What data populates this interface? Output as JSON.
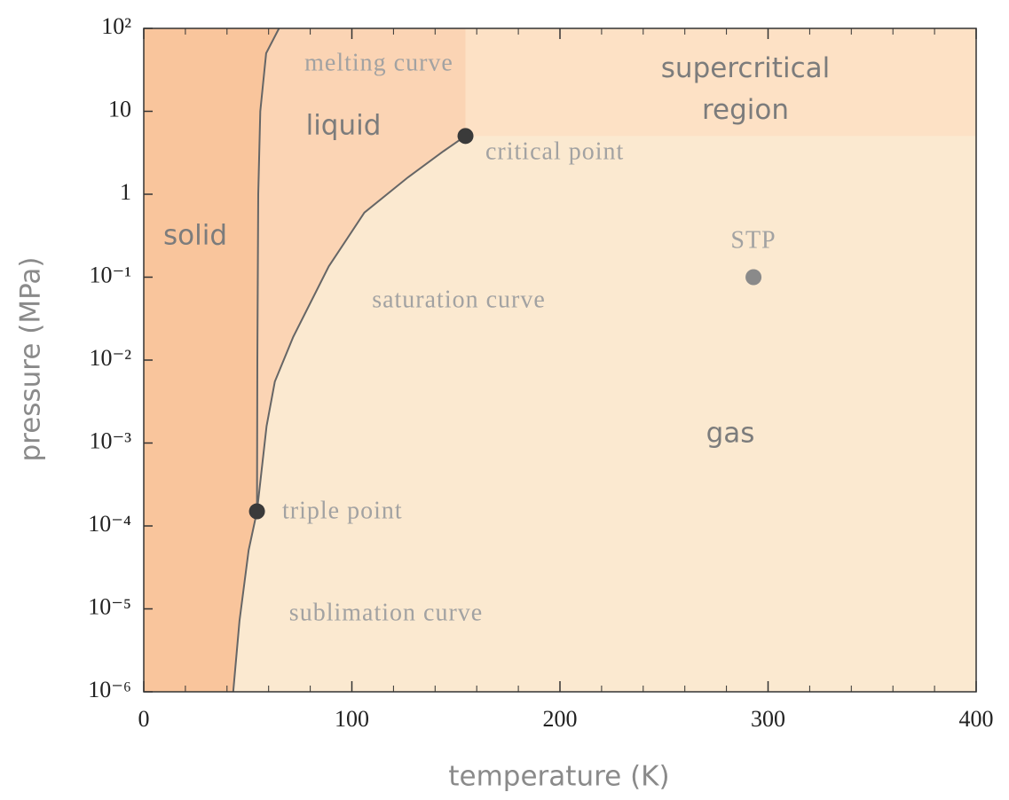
{
  "chart_data": {
    "type": "line",
    "xlabel": "temperature  (K)",
    "ylabel": "pressure  (MPa)",
    "xlim": [
      0,
      400
    ],
    "xticks": [
      0,
      100,
      200,
      300,
      400
    ],
    "xminorticks": [
      20,
      40,
      60,
      80,
      120,
      140,
      160,
      180,
      220,
      240,
      260,
      280,
      320,
      340,
      360,
      380
    ],
    "ylim": [
      1e-06,
      100
    ],
    "yscale": "log",
    "yticks": [
      {
        "value": 1e-06,
        "label": "10⁻⁶"
      },
      {
        "value": 1e-05,
        "label": "10⁻⁵"
      },
      {
        "value": 0.0001,
        "label": "10⁻⁴"
      },
      {
        "value": 0.001,
        "label": "10⁻³"
      },
      {
        "value": 0.01,
        "label": "10⁻²"
      },
      {
        "value": 0.1,
        "label": "10⁻¹"
      },
      1,
      10,
      {
        "value": 100,
        "label": "10²"
      }
    ],
    "line_color": "#666666",
    "series": [
      {
        "name": "melting curve",
        "x": [
          54.4,
          54.6,
          55,
          56,
          58.8,
          65
        ],
        "values": [
          0.00015,
          0.01,
          1,
          10,
          50,
          100
        ]
      },
      {
        "name": "saturation curve",
        "x": [
          54.4,
          59,
          63,
          71.8,
          88.9,
          106,
          127,
          144,
          154.6
        ],
        "values": [
          0.00015,
          0.0016,
          0.0055,
          0.019,
          0.135,
          0.6,
          1.6,
          3.3,
          5.04
        ]
      },
      {
        "name": "sublimation curve",
        "x": [
          43,
          46,
          50.4,
          54.4
        ],
        "values": [
          1e-06,
          7.2e-06,
          5.1e-05,
          0.00015
        ]
      }
    ],
    "points": [
      {
        "name": "triple point",
        "x": 54.4,
        "value": 0.00015,
        "color": "#3a3a3a"
      },
      {
        "name": "critical point",
        "x": 154.6,
        "value": 5.04,
        "color": "#3a3a3a"
      },
      {
        "name": "STP",
        "x": 293,
        "value": 0.1,
        "color": "#8a8a8a"
      }
    ],
    "regions": [
      {
        "name": "solid",
        "color": "#f9c59c"
      },
      {
        "name": "liquid",
        "color": "#fbd4b4"
      },
      {
        "name": "gas",
        "color": "#fbe9d0"
      },
      {
        "name": "supercritical region",
        "color": "#fde1c5"
      }
    ]
  }
}
